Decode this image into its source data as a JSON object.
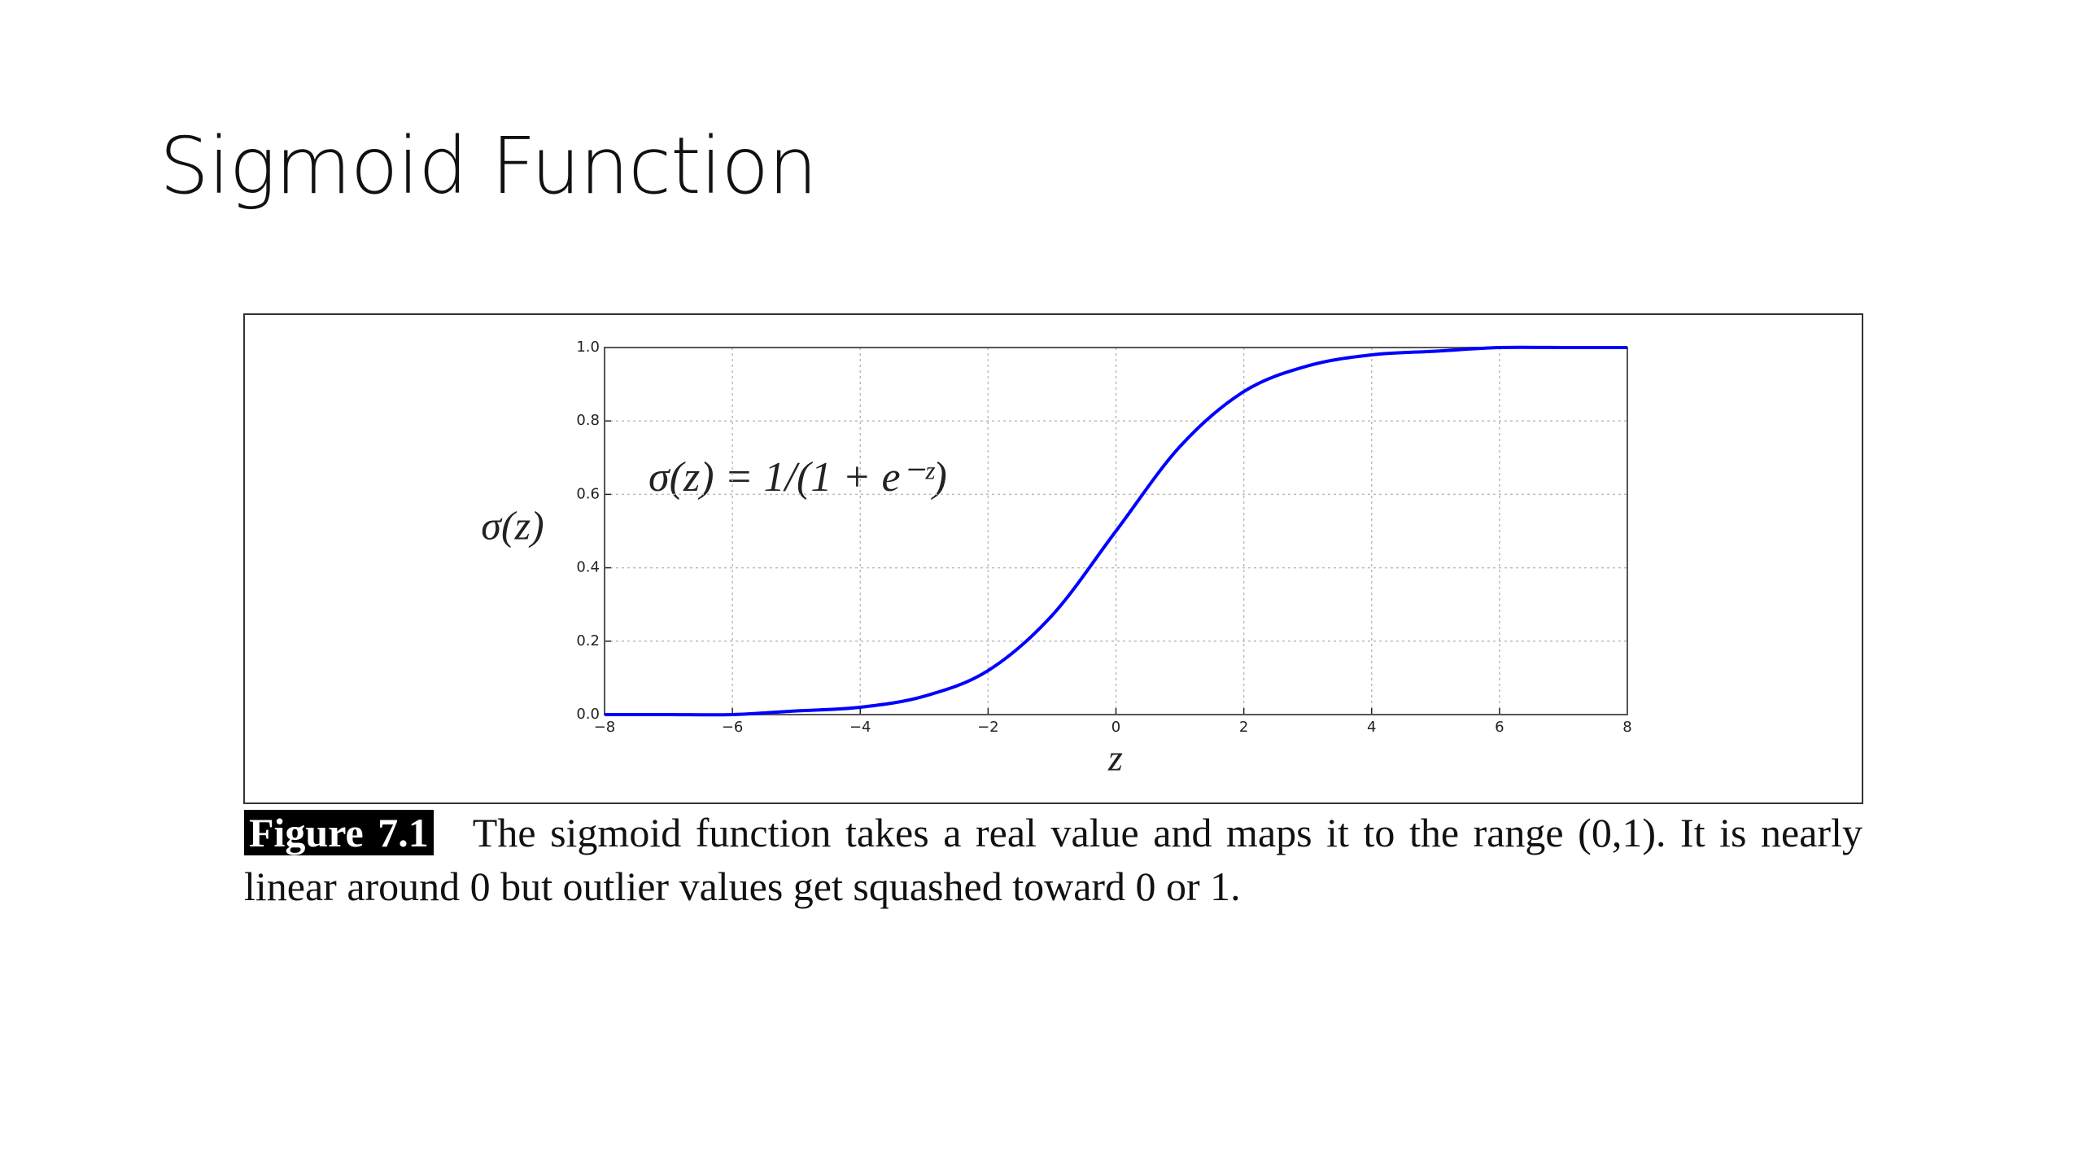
{
  "slide_title": "Sigmoid Function",
  "chart_data": {
    "type": "line",
    "ylabel": "σ(z)",
    "xlabel": "z",
    "annotation": "σ(z) = 1/(1 + e⁻ᶻ)",
    "x": [
      -8,
      -7,
      -6,
      -5,
      -4,
      -3,
      -2,
      -1,
      0,
      1,
      2,
      3,
      4,
      5,
      6,
      7,
      8
    ],
    "series": [
      {
        "color": "#0000ff",
        "values": [
          0.0,
          0.0,
          0.0,
          0.01,
          0.02,
          0.05,
          0.12,
          0.27,
          0.5,
          0.73,
          0.88,
          0.95,
          0.98,
          0.99,
          1.0,
          1.0,
          1.0
        ]
      }
    ],
    "xlim": [
      -8,
      8
    ],
    "xticks": [
      {
        "value": -8,
        "label": "−8"
      },
      {
        "value": -6,
        "label": "−6"
      },
      {
        "value": -4,
        "label": "−4"
      },
      {
        "value": -2,
        "label": "−2"
      },
      0,
      2,
      4,
      6,
      8
    ],
    "ylim": [
      0,
      1
    ],
    "yticks": [
      {
        "value": 0,
        "label": "0.0"
      },
      0.2,
      0.4,
      0.6,
      0.8,
      {
        "value": 1,
        "label": "1.0"
      }
    ],
    "grid": true
  },
  "caption": {
    "label": "Figure 7.1",
    "text": "The sigmoid function takes a real value and maps it to the range (0,1). It is nearly linear around 0 but outlier values get squashed toward 0 or 1."
  }
}
